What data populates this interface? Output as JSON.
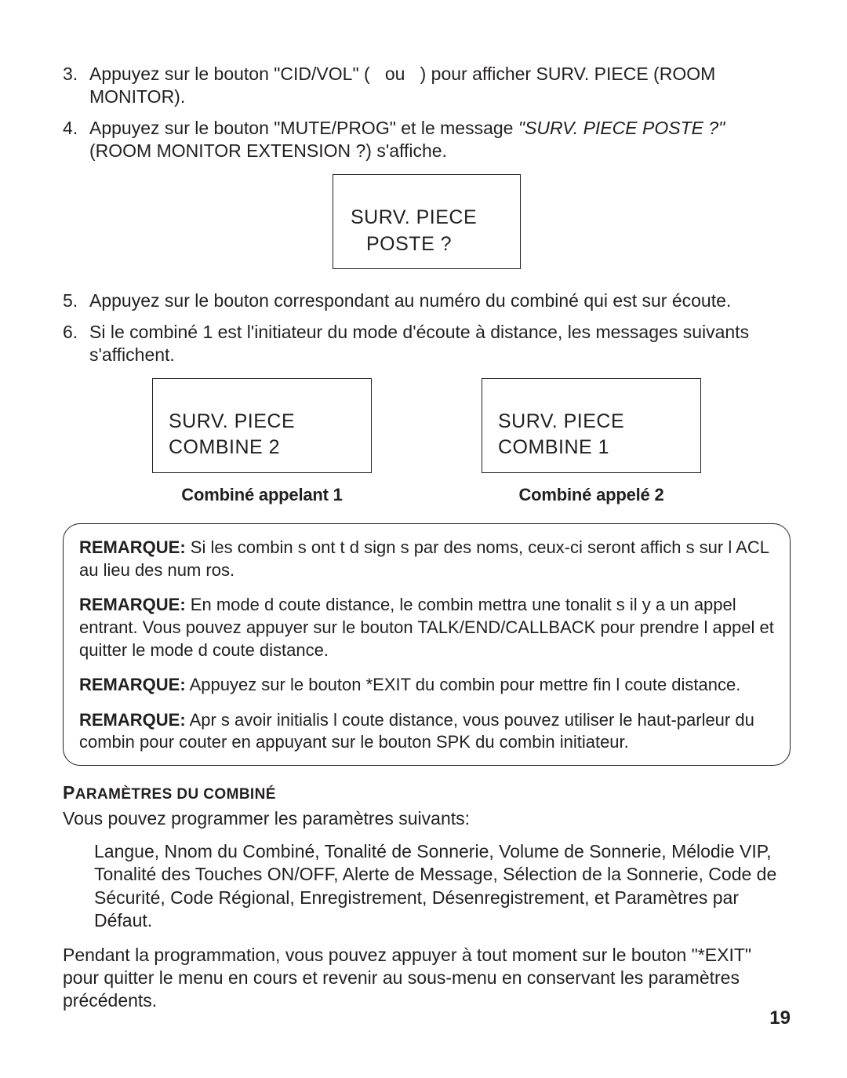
{
  "steps_a": [
    {
      "n": "3.",
      "text_before": "Appuyez sur le bouton \"CID/VOL\" (",
      "text_mid": "ou",
      "text_after": ") pour afficher SURV. PIECE (ROOM MONITOR)."
    },
    {
      "n": "4.",
      "text_before": "Appuyez sur le bouton \"MUTE/PROG\" et le message ",
      "italic": "\"SURV. PIECE POSTE ?\"",
      "text_after2": " (ROOM MONITOR EXTENSION ?)  s'affiche."
    }
  ],
  "lcd_single": {
    "line1": "SURV. PIECE",
    "line2": "POSTE   ?"
  },
  "steps_b": [
    {
      "n": "5.",
      "text": "Appuyez sur le bouton correspondant au numéro du combiné qui est sur écoute."
    },
    {
      "n": "6.",
      "text": "Si le combiné 1 est l'initiateur du mode d'écoute à distance, les messages suivants s'affichent."
    }
  ],
  "lcd_pair": {
    "left": {
      "line1": "SURV. PIECE",
      "line2": "COMBINE  2",
      "caption": "Combiné appelant 1"
    },
    "right": {
      "line1": "SURV. PIECE",
      "line2": "COMBINE  1",
      "caption": "Combiné appelé 2"
    }
  },
  "notes": {
    "label": "REMARQUE:",
    "items": [
      "Si les combin s ont t d sign s par des noms, ceux-ci seront affich s sur l ACL au lieu des num ros.",
      "En mode d coute  distance, le combin  mettra une tonalit  s il y a un appel entrant. Vous pouvez appuyer sur le bouton  TALK/END/CALLBACK  pour prendre l appel et quitter le mode d coute  distance.",
      "Appuyez sur le bouton  *EXIT  du combin  pour mettre fin  l  coute  distance.",
      "Apr s avoir initialis  l  coute  distance, vous pouvez utiliser le haut-parleur du combin  pour  couter en appuyant sur le bouton  SPK  du combin  initiateur."
    ]
  },
  "section": {
    "title_first": "P",
    "title_rest": "ARAMÈTRES DU COMBINÉ",
    "intro": "Vous pouvez programmer les paramètres suivants:",
    "list": "Langue, Nnom du Combiné, Tonalité de Sonnerie, Volume de Sonnerie, Mélodie VIP, Tonalité des Touches ON/OFF, Alerte de Message, Sélection de la Sonnerie, Code de Sécurité, Code Régional, Enregistrement, Désenregistrement, et Paramètres par Défaut.",
    "outro": "Pendant la programmation, vous pouvez appuyer à tout moment sur le bouton \"*EXIT\" pour quitter le menu en cours et revenir au sous-menu en conservant les paramètres précédents."
  },
  "page_number": "19"
}
